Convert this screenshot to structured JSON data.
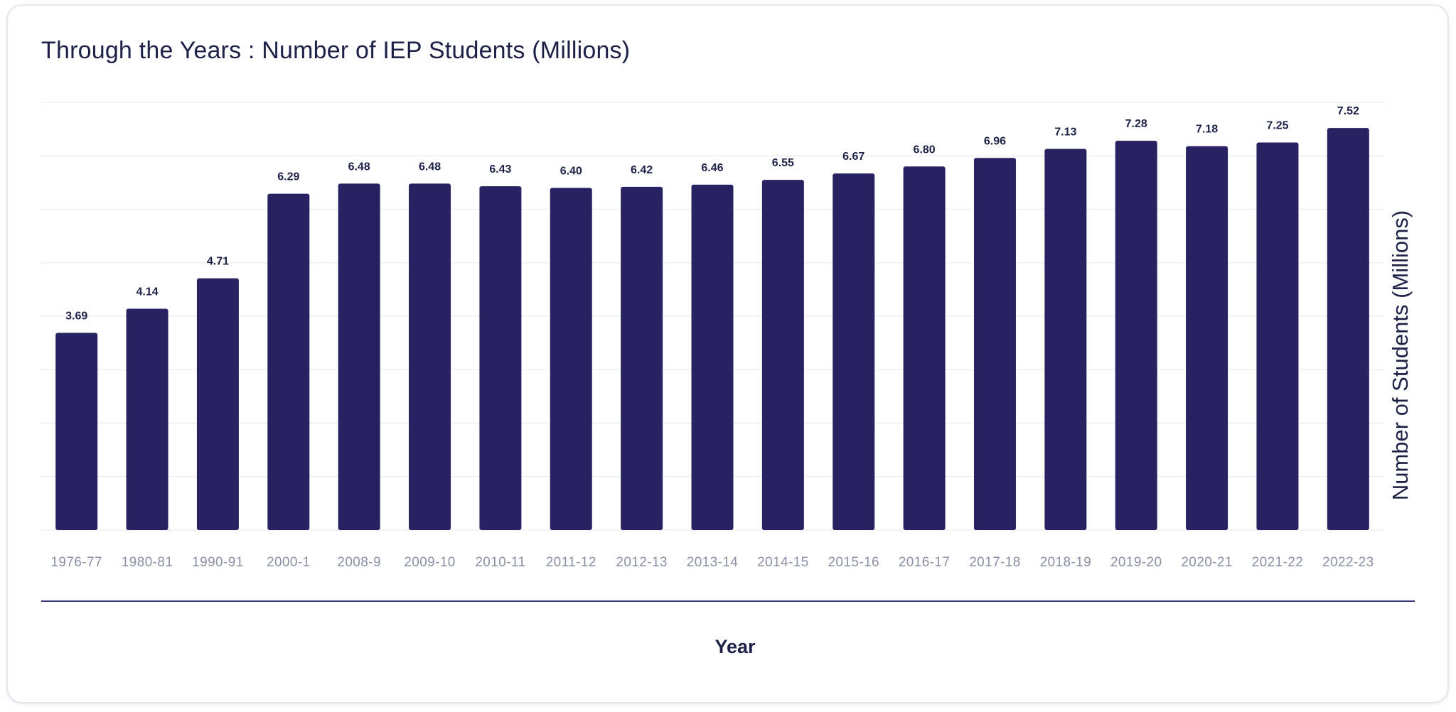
{
  "chart_data": {
    "type": "bar",
    "title": "Through the Years : Number of IEP Students (Millions)",
    "xlabel": "Year",
    "ylabel": "Number of Students (Millions)",
    "categories": [
      "1976-77",
      "1980-81",
      "1990-91",
      "2000-1",
      "2008-9",
      "2009-10",
      "2010-11",
      "2011-12",
      "2012-13",
      "2013-14",
      "2014-15",
      "2015-16",
      "2016-17",
      "2017-18",
      "2018-19",
      "2019-20",
      "2020-21",
      "2021-22",
      "2022-23"
    ],
    "values": [
      3.69,
      4.14,
      4.71,
      6.29,
      6.48,
      6.48,
      6.43,
      6.4,
      6.42,
      6.46,
      6.55,
      6.67,
      6.8,
      6.96,
      7.13,
      7.28,
      7.18,
      7.25,
      7.52
    ],
    "value_labels": [
      "3.69",
      "4.14",
      "4.71",
      "6.29",
      "6.48",
      "6.48",
      "6.43",
      "6.40",
      "6.42",
      "6.46",
      "6.55",
      "6.67",
      "6.80",
      "6.96",
      "7.13",
      "7.28",
      "7.18",
      "7.25",
      "7.52"
    ],
    "ylim": [
      0,
      8
    ],
    "grid": true,
    "y_axis_position": "right",
    "colors": {
      "bar": "#282262",
      "text": "#1d2147",
      "tick": "#8a8fa3",
      "grid": "#ececf1",
      "axis_line": "#3d3a7a"
    }
  }
}
